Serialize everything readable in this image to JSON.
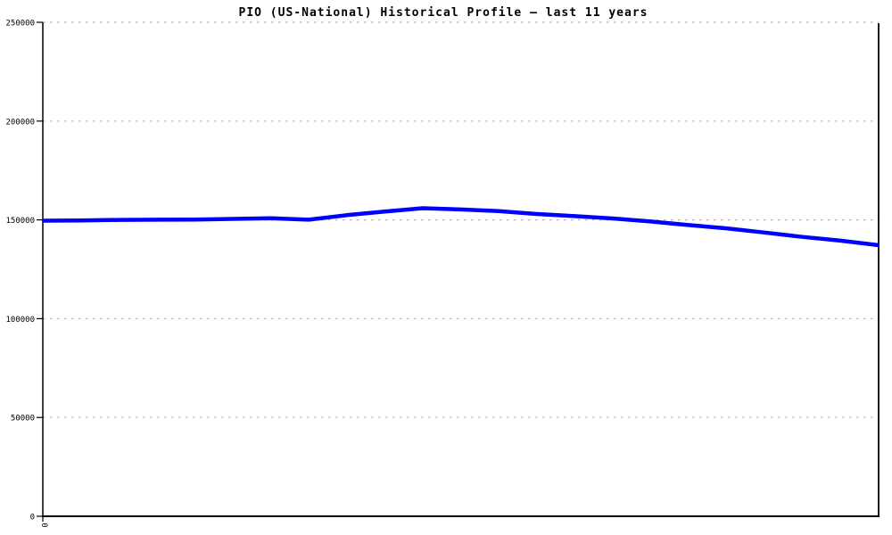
{
  "window": {
    "background_color": "#ffffff"
  },
  "chart_data": {
    "type": "line",
    "title": "PIO (US-National) Historical Profile – last 11 years",
    "xlabel": "",
    "ylabel": "",
    "xlim": [
      0,
      11
    ],
    "ylim": [
      0,
      250000
    ],
    "y_ticks": [
      0,
      50000,
      100000,
      150000,
      200000,
      250000
    ],
    "y_tick_labels": [
      "0",
      "50000",
      "100000",
      "150000",
      "200000",
      "250000"
    ],
    "x_ticks": [
      0
    ],
    "x_tick_labels": [
      "0"
    ],
    "grid": "horizontal dotted gridlines at each y tick",
    "legend": "none",
    "series": [
      {
        "name": "PIO (US-National)",
        "color": "#0000ff",
        "line_width": 4.5,
        "x": [
          0,
          0.5,
          1,
          1.5,
          2,
          2.5,
          3,
          3.5,
          4,
          4.5,
          5,
          5.5,
          6,
          6.5,
          7,
          7.5,
          8,
          8.5,
          9,
          9.5,
          10,
          10.5,
          11
        ],
        "values": [
          149600,
          149700,
          150000,
          150100,
          150200,
          150500,
          150800,
          150100,
          152400,
          154200,
          155900,
          155300,
          154400,
          153000,
          151900,
          150700,
          149200,
          147400,
          145700,
          143600,
          141400,
          139500,
          137200
        ]
      }
    ]
  },
  "style": {
    "axis_color": "#000000",
    "grid_color": "#b4b4b4",
    "text_color": "#000000"
  }
}
